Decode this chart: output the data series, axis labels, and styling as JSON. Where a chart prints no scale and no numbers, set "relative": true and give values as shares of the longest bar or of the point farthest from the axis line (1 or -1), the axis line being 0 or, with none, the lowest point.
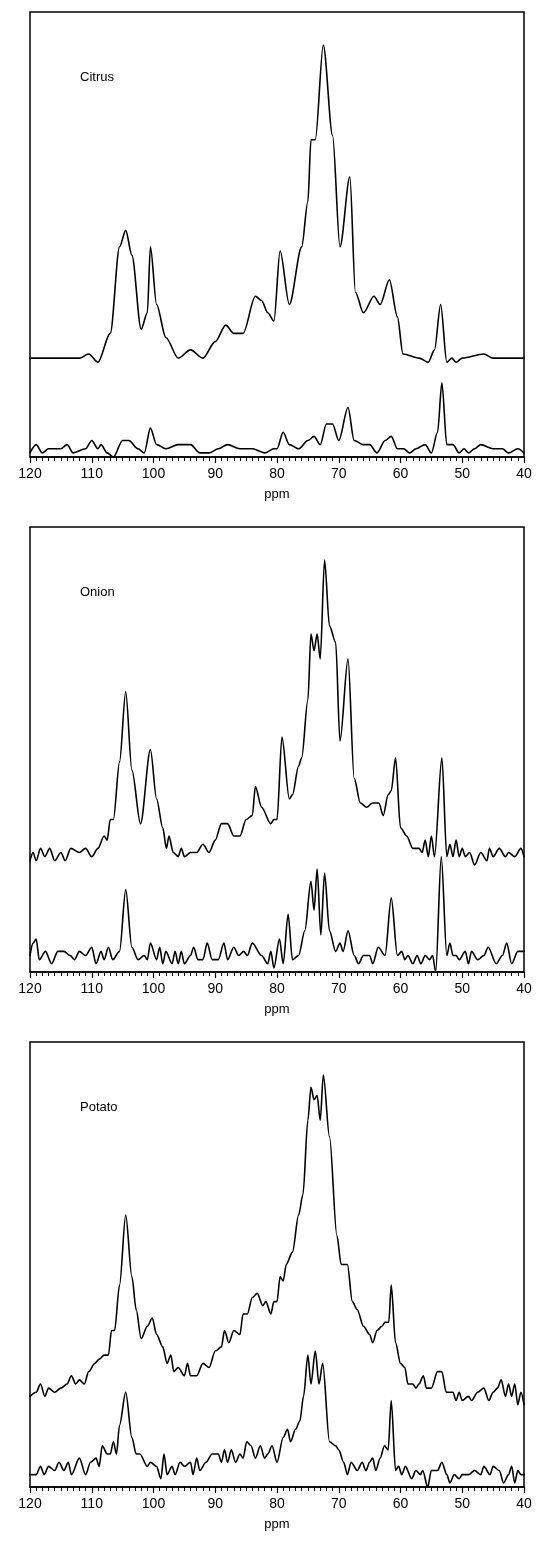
{
  "chart_data": [
    {
      "type": "line",
      "annotations": [
        "Citrus"
      ],
      "xlabel": "ppm",
      "relative": true,
      "xlim": [
        120,
        40
      ],
      "xticks": [
        120,
        110,
        100,
        90,
        80,
        70,
        60,
        50,
        40
      ],
      "marker": "none",
      "line_style": "solid",
      "series": [
        {
          "color": "#000000",
          "x": [
            120,
            118,
            116,
            114,
            112,
            110.5,
            109,
            107,
            105.5,
            104.5,
            103.5,
            102,
            101,
            100.5,
            99.5,
            98,
            96,
            94,
            92,
            90,
            88.3,
            87,
            85.5,
            83.5,
            82.5,
            81.5,
            80.5,
            79.5,
            78,
            76,
            75,
            74.5,
            73.8,
            72.5,
            71,
            69.8,
            68.2,
            67.3,
            66,
            64.3,
            63.3,
            61.8,
            60.5,
            59.6,
            57,
            55.5,
            54.5,
            53.5,
            52.5,
            51.7,
            51,
            50,
            46.5,
            45,
            42,
            40
          ],
          "values": [
            0.24,
            0.24,
            0.24,
            0.24,
            0.24,
            0.25,
            0.23,
            0.3,
            0.51,
            0.55,
            0.49,
            0.31,
            0.35,
            0.51,
            0.37,
            0.29,
            0.24,
            0.26,
            0.24,
            0.28,
            0.32,
            0.3,
            0.3,
            0.39,
            0.38,
            0.35,
            0.33,
            0.5,
            0.37,
            0.51,
            0.62,
            0.77,
            0.77,
            1,
            0.78,
            0.51,
            0.68,
            0.4,
            0.35,
            0.39,
            0.37,
            0.43,
            0.34,
            0.25,
            0.24,
            0.23,
            0.26,
            0.37,
            0.23,
            0.24,
            0.23,
            0.24,
            0.25,
            0.24,
            0.24,
            0.24
          ]
        },
        {
          "color": "#000000",
          "x": [
            120,
            119,
            118,
            117,
            115,
            114,
            113,
            111,
            110,
            109,
            108.5,
            107.5,
            106.5,
            105,
            104,
            102.5,
            101.5,
            100.5,
            99.5,
            98,
            96,
            94,
            92.5,
            91,
            89.5,
            88,
            86,
            84,
            82,
            80.5,
            80,
            79,
            78,
            76.5,
            75,
            74,
            73,
            72,
            71,
            70,
            68.5,
            67.5,
            66,
            65,
            63.8,
            62.5,
            61.5,
            60.5,
            59.5,
            58.5,
            57.5,
            56,
            55,
            54,
            53.3,
            52.5,
            51.5,
            50.5,
            49.7,
            49,
            48,
            47,
            45,
            43.5,
            42.5,
            41,
            40
          ],
          "values": [
            0.01,
            0.03,
            0.01,
            0.02,
            0.02,
            0.03,
            0.01,
            0.02,
            0.04,
            0.02,
            0.03,
            0.01,
            0,
            0.04,
            0.04,
            0.02,
            0.01,
            0.07,
            0.03,
            0.02,
            0.03,
            0.03,
            0.01,
            0.01,
            0.02,
            0.03,
            0.02,
            0.02,
            0.01,
            0.02,
            0.02,
            0.06,
            0.03,
            0.02,
            0.04,
            0.05,
            0.03,
            0.08,
            0.08,
            0.04,
            0.12,
            0.04,
            0.03,
            0.03,
            0.01,
            0.04,
            0.05,
            0.02,
            0.02,
            0.01,
            0.02,
            0.03,
            0.01,
            0.06,
            0.18,
            0.03,
            0.03,
            0.01,
            0.02,
            0.01,
            0.02,
            0.03,
            0.02,
            0.02,
            0.01,
            0.02,
            0.01
          ]
        }
      ]
    },
    {
      "type": "line",
      "annotations": [
        "Onion"
      ],
      "xlabel": "ppm",
      "relative": true,
      "xlim": [
        120,
        40
      ],
      "xticks": [
        120,
        110,
        100,
        90,
        80,
        70,
        60,
        50,
        40
      ],
      "marker": "none",
      "line_style": "solid",
      "series": [
        {
          "color": "#000000",
          "x": [
            120,
            119.5,
            119,
            118.3,
            117.6,
            116.8,
            116,
            115,
            114.3,
            113.4,
            112,
            111,
            110,
            109,
            108,
            107.5,
            107,
            106.5,
            105.5,
            104.5,
            103.5,
            102.1,
            100.5,
            99.5,
            98.5,
            97.9,
            97.5,
            96.8,
            96,
            95.5,
            95,
            94,
            93,
            92,
            91,
            90,
            89,
            88,
            87,
            86,
            85,
            84,
            83.5,
            82.5,
            81,
            80.5,
            80,
            79.2,
            78,
            77.5,
            76.5,
            76,
            75,
            74.5,
            74,
            73.5,
            73,
            72.3,
            71.5,
            70.5,
            69.8,
            68.5,
            67.5,
            66.5,
            65.5,
            64.5,
            63.5,
            62.8,
            62,
            61.5,
            60.8,
            60,
            59,
            58,
            57,
            56.5,
            56,
            55.5,
            55,
            54.5,
            53.3,
            52.5,
            52,
            51.5,
            51,
            50.5,
            50,
            49.5,
            48.8,
            48,
            47,
            46,
            45.6,
            45,
            44,
            43,
            42.5,
            41.5,
            40.5,
            40
          ],
          "values": [
            0.27,
            0.29,
            0.27,
            0.3,
            0.28,
            0.3,
            0.27,
            0.29,
            0.27,
            0.3,
            0.29,
            0.3,
            0.28,
            0.3,
            0.33,
            0.32,
            0.37,
            0.37,
            0.51,
            0.68,
            0.49,
            0.36,
            0.54,
            0.42,
            0.35,
            0.3,
            0.33,
            0.29,
            0.28,
            0.3,
            0.28,
            0.29,
            0.29,
            0.31,
            0.29,
            0.32,
            0.36,
            0.36,
            0.33,
            0.33,
            0.37,
            0.38,
            0.45,
            0.4,
            0.36,
            0.37,
            0.37,
            0.57,
            0.42,
            0.43,
            0.5,
            0.52,
            0.66,
            0.82,
            0.78,
            0.82,
            0.76,
            1,
            0.84,
            0.8,
            0.56,
            0.76,
            0.47,
            0.41,
            0.4,
            0.41,
            0.41,
            0.38,
            0.43,
            0.44,
            0.52,
            0.35,
            0.33,
            0.3,
            0.3,
            0.29,
            0.32,
            0.28,
            0.33,
            0.28,
            0.52,
            0.28,
            0.31,
            0.28,
            0.32,
            0.28,
            0.3,
            0.28,
            0.29,
            0.26,
            0.29,
            0.27,
            0.3,
            0.28,
            0.3,
            0.28,
            0.29,
            0.28,
            0.3,
            0.28
          ]
        },
        {
          "color": "#000000",
          "x": [
            120,
            119.5,
            119,
            118.5,
            117.5,
            116.5,
            115.5,
            114.5,
            113.5,
            112.8,
            112,
            111,
            110,
            109.3,
            108.5,
            108,
            107.3,
            106.6,
            105.5,
            104.5,
            103.5,
            102.5,
            101.5,
            101,
            100.5,
            99.5,
            99,
            98.5,
            98,
            97,
            96.5,
            96,
            95.5,
            95,
            94,
            93.5,
            92.8,
            92,
            91.3,
            90.5,
            89.5,
            88.6,
            88,
            87,
            86.2,
            85.4,
            84.8,
            84,
            82.5,
            81.5,
            81,
            80.5,
            79.6,
            79,
            78.2,
            77.5,
            76.5,
            75.5,
            74.5,
            74,
            73.5,
            72.9,
            72.3,
            71.5,
            70.5,
            69.8,
            69.3,
            68.5,
            67.5,
            66.8,
            66,
            65,
            64.5,
            63.6,
            62.5,
            61.5,
            60.5,
            59.8,
            59.3,
            58.8,
            58,
            57.3,
            56.7,
            56,
            55.3,
            54.8,
            54.3,
            53.4,
            52.5,
            52,
            51.5,
            51,
            50.5,
            49.5,
            49,
            48.5,
            47.5,
            46.5,
            45.8,
            44.5,
            43.5,
            42.8,
            42,
            41,
            40
          ],
          "values": [
            0.04,
            0.07,
            0.08,
            0.03,
            0.05,
            0.02,
            0.05,
            0.05,
            0.04,
            0.03,
            0.05,
            0.04,
            0.06,
            0.02,
            0.05,
            0.03,
            0.06,
            0.03,
            0.05,
            0.2,
            0.06,
            0.03,
            0.04,
            0.03,
            0.07,
            0.03,
            0.06,
            0.02,
            0.05,
            0.02,
            0.05,
            0.02,
            0.05,
            0.02,
            0.04,
            0.06,
            0.03,
            0.03,
            0.07,
            0.03,
            0.03,
            0.07,
            0.03,
            0.06,
            0.04,
            0.05,
            0.04,
            0.07,
            0.04,
            0.02,
            0.05,
            0.01,
            0.08,
            0.02,
            0.14,
            0.03,
            0.04,
            0.1,
            0.22,
            0.15,
            0.25,
            0.09,
            0.24,
            0.1,
            0.05,
            0.07,
            0.05,
            0.1,
            0.04,
            0.02,
            0.04,
            0.04,
            0.02,
            0.06,
            0.04,
            0.18,
            0.04,
            0.05,
            0.03,
            0.04,
            0.02,
            0.04,
            0.02,
            0.04,
            0.03,
            0.04,
            0,
            0.28,
            0.04,
            0.07,
            0.04,
            0.04,
            0.03,
            0.05,
            0.02,
            0.05,
            0.03,
            0.04,
            0.06,
            0.02,
            0.04,
            0.07,
            0.02,
            0.05,
            0.05
          ]
        }
      ]
    },
    {
      "type": "line",
      "annotations": [
        "Potato"
      ],
      "xlabel": "ppm",
      "relative": true,
      "xlim": [
        120,
        40
      ],
      "xticks": [
        120,
        110,
        100,
        90,
        80,
        70,
        60,
        50,
        40
      ],
      "marker": "none",
      "line_style": "solid",
      "series": [
        {
          "color": "#000000",
          "x": [
            120,
            119,
            118.3,
            117.6,
            117,
            116,
            115,
            114,
            113.3,
            112.6,
            112,
            111.2,
            110.5,
            109.5,
            108.8,
            108,
            107.3,
            106.8,
            106.3,
            105.5,
            104.5,
            103.5,
            102.8,
            102,
            101,
            100.2,
            99.5,
            98.5,
            97.8,
            97.2,
            96.7,
            96,
            95,
            94.5,
            94,
            93,
            92,
            91,
            90,
            89,
            88.5,
            87.8,
            87,
            86,
            85.5,
            84.8,
            84,
            83.2,
            82.3,
            81.8,
            81,
            80.5,
            80,
            79.5,
            79,
            78.5,
            77.5,
            76.5,
            75.8,
            75,
            74.5,
            74,
            73.5,
            73,
            72.5,
            71.5,
            70.3,
            69.6,
            68.6,
            67.8,
            67,
            66,
            65,
            64.5,
            63.8,
            63,
            62.5,
            61.9,
            61.5,
            60.8,
            60,
            59.3,
            58.8,
            58,
            57.5,
            57,
            56.3,
            55.8,
            55,
            54,
            53.3,
            52.6,
            51.5,
            51,
            50.5,
            50,
            49,
            48.5,
            47.5,
            46.5,
            45.7,
            45,
            44.3,
            43.7,
            43,
            42.5,
            42,
            41.5,
            41,
            40.5,
            40
          ],
          "values": [
            0.22,
            0.23,
            0.25,
            0.22,
            0.24,
            0.23,
            0.24,
            0.25,
            0.27,
            0.25,
            0.26,
            0.25,
            0.28,
            0.3,
            0.31,
            0.32,
            0.32,
            0.38,
            0.38,
            0.49,
            0.66,
            0.51,
            0.43,
            0.36,
            0.39,
            0.41,
            0.37,
            0.34,
            0.3,
            0.32,
            0.28,
            0.29,
            0.27,
            0.3,
            0.27,
            0.27,
            0.3,
            0.29,
            0.33,
            0.34,
            0.38,
            0.35,
            0.38,
            0.37,
            0.42,
            0.42,
            0.46,
            0.47,
            0.44,
            0.45,
            0.42,
            0.45,
            0.45,
            0.51,
            0.5,
            0.54,
            0.57,
            0.66,
            0.71,
            0.89,
            0.97,
            0.94,
            0.95,
            0.89,
            1,
            0.85,
            0.61,
            0.54,
            0.54,
            0.45,
            0.43,
            0.39,
            0.37,
            0.35,
            0.38,
            0.39,
            0.4,
            0.4,
            0.49,
            0.35,
            0.3,
            0.29,
            0.25,
            0.25,
            0.24,
            0.25,
            0.27,
            0.24,
            0.24,
            0.28,
            0.28,
            0.23,
            0.23,
            0.21,
            0.23,
            0.21,
            0.22,
            0.21,
            0.23,
            0.24,
            0.21,
            0.23,
            0.24,
            0.26,
            0.22,
            0.25,
            0.22,
            0.25,
            0.2,
            0.23,
            0.2
          ]
        },
        {
          "color": "#000000",
          "x": [
            120,
            119,
            118.3,
            117.7,
            117,
            116,
            115.3,
            114.5,
            113.8,
            113.3,
            112,
            111,
            110.2,
            109.3,
            108.8,
            108.3,
            107.5,
            107,
            106.5,
            106,
            105.5,
            104.5,
            103.5,
            102.8,
            102.2,
            101,
            100.5,
            99.5,
            98.8,
            98.3,
            97.8,
            97,
            96.5,
            95.7,
            95,
            94,
            93.6,
            93,
            92.5,
            91.5,
            90.5,
            89.5,
            89,
            88.5,
            88,
            87.4,
            86.7,
            86,
            85.5,
            84.9,
            84.2,
            83.5,
            82.7,
            82,
            81.5,
            80.8,
            80,
            79,
            78.3,
            77.8,
            77,
            76.3,
            75.7,
            75,
            74.5,
            73.8,
            73.2,
            72.6,
            71.5,
            70.5,
            70,
            69.2,
            68.6,
            68,
            67,
            66.2,
            65.6,
            65,
            64.5,
            64,
            63.3,
            62.6,
            62,
            61.5,
            60.8,
            60.3,
            59.8,
            59.2,
            58.2,
            57.5,
            56.8,
            56.4,
            55.6,
            55,
            54,
            53.3,
            52.5,
            52,
            51.3,
            50.5,
            50,
            49,
            48,
            47,
            46.5,
            45.5,
            45,
            44,
            43.3,
            42.5,
            42,
            41.5,
            41,
            40.5,
            40
          ],
          "values": [
            0.03,
            0.03,
            0.05,
            0.03,
            0.05,
            0.04,
            0.06,
            0.04,
            0.06,
            0.03,
            0.07,
            0.03,
            0.06,
            0.07,
            0.05,
            0.1,
            0.08,
            0.08,
            0.11,
            0.08,
            0.15,
            0.23,
            0.12,
            0.08,
            0.08,
            0.05,
            0.06,
            0.05,
            0.02,
            0.08,
            0.03,
            0.05,
            0.03,
            0.06,
            0.05,
            0.06,
            0.03,
            0.07,
            0.04,
            0.06,
            0.08,
            0.08,
            0.06,
            0.09,
            0.06,
            0.09,
            0.06,
            0.08,
            0.07,
            0.11,
            0.1,
            0.07,
            0.1,
            0.07,
            0.08,
            0.1,
            0.06,
            0.12,
            0.14,
            0.11,
            0.14,
            0.16,
            0.22,
            0.32,
            0.25,
            0.33,
            0.25,
            0.3,
            0.11,
            0.1,
            0.09,
            0.06,
            0.03,
            0.06,
            0.04,
            0.06,
            0.04,
            0.06,
            0.07,
            0.04,
            0.07,
            0.1,
            0.09,
            0.21,
            0.04,
            0.05,
            0.03,
            0.05,
            0.02,
            0.04,
            0.03,
            0.04,
            0,
            0.04,
            0.04,
            0.06,
            0.03,
            0.01,
            0.03,
            0.02,
            0.03,
            0.03,
            0.04,
            0.03,
            0.05,
            0.03,
            0.05,
            0.04,
            0.01,
            0.03,
            0.05,
            0.01,
            0.04,
            0.03,
            0.03
          ]
        }
      ]
    }
  ]
}
